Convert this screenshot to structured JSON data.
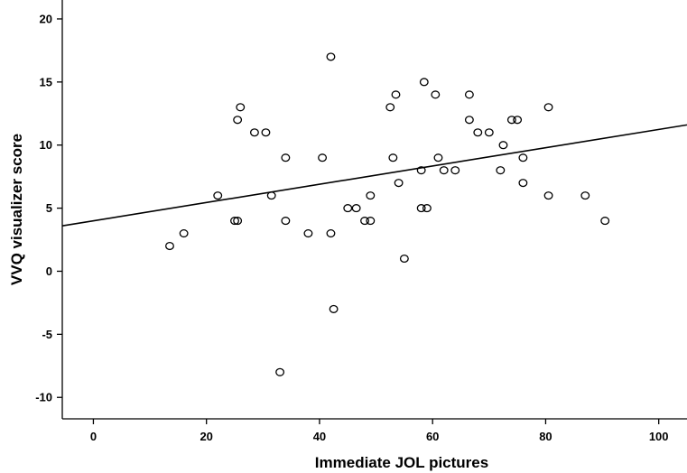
{
  "chart_data": {
    "type": "scatter",
    "title": "",
    "xlabel": "Immediate JOL pictures",
    "ylabel": "VVQ visualizer score",
    "xlim": [
      -5.5,
      105
    ],
    "ylim": [
      -11.7,
      21.5
    ],
    "x_ticks": [
      0,
      20,
      40,
      60,
      80,
      100
    ],
    "y_ticks": [
      -10,
      -5,
      0,
      5,
      10,
      15,
      20
    ],
    "grid": false,
    "legend": "none",
    "marker": "open-circle",
    "fit_line": {
      "type": "linear",
      "x": [
        -5.5,
        105
      ],
      "y": [
        3.6,
        11.6
      ]
    },
    "points": [
      {
        "x": 13.5,
        "y": 2
      },
      {
        "x": 16,
        "y": 3
      },
      {
        "x": 22,
        "y": 6
      },
      {
        "x": 25,
        "y": 4
      },
      {
        "x": 25.5,
        "y": 4
      },
      {
        "x": 25.5,
        "y": 12
      },
      {
        "x": 26,
        "y": 13
      },
      {
        "x": 28.5,
        "y": 11
      },
      {
        "x": 30.5,
        "y": 11
      },
      {
        "x": 31.5,
        "y": 6
      },
      {
        "x": 33,
        "y": -8
      },
      {
        "x": 34,
        "y": 4
      },
      {
        "x": 34,
        "y": 9
      },
      {
        "x": 38,
        "y": 3
      },
      {
        "x": 40.5,
        "y": 9
      },
      {
        "x": 42,
        "y": 3
      },
      {
        "x": 42,
        "y": 17
      },
      {
        "x": 42.5,
        "y": -3
      },
      {
        "x": 45,
        "y": 5
      },
      {
        "x": 46.5,
        "y": 5
      },
      {
        "x": 48,
        "y": 4
      },
      {
        "x": 49,
        "y": 4
      },
      {
        "x": 49,
        "y": 6
      },
      {
        "x": 52.5,
        "y": 13
      },
      {
        "x": 53,
        "y": 9
      },
      {
        "x": 53.5,
        "y": 14
      },
      {
        "x": 54,
        "y": 7
      },
      {
        "x": 55,
        "y": 1
      },
      {
        "x": 58,
        "y": 8
      },
      {
        "x": 58,
        "y": 5
      },
      {
        "x": 59,
        "y": 5
      },
      {
        "x": 58.5,
        "y": 15
      },
      {
        "x": 60.5,
        "y": 14
      },
      {
        "x": 61,
        "y": 9
      },
      {
        "x": 62,
        "y": 8
      },
      {
        "x": 64,
        "y": 8
      },
      {
        "x": 66.5,
        "y": 12
      },
      {
        "x": 66.5,
        "y": 14
      },
      {
        "x": 68,
        "y": 11
      },
      {
        "x": 70,
        "y": 11
      },
      {
        "x": 72,
        "y": 8
      },
      {
        "x": 72.5,
        "y": 10
      },
      {
        "x": 74,
        "y": 12
      },
      {
        "x": 75,
        "y": 12
      },
      {
        "x": 76,
        "y": 9
      },
      {
        "x": 76,
        "y": 7
      },
      {
        "x": 80.5,
        "y": 13
      },
      {
        "x": 80.5,
        "y": 6
      },
      {
        "x": 87,
        "y": 6
      },
      {
        "x": 90.5,
        "y": 4
      }
    ]
  }
}
